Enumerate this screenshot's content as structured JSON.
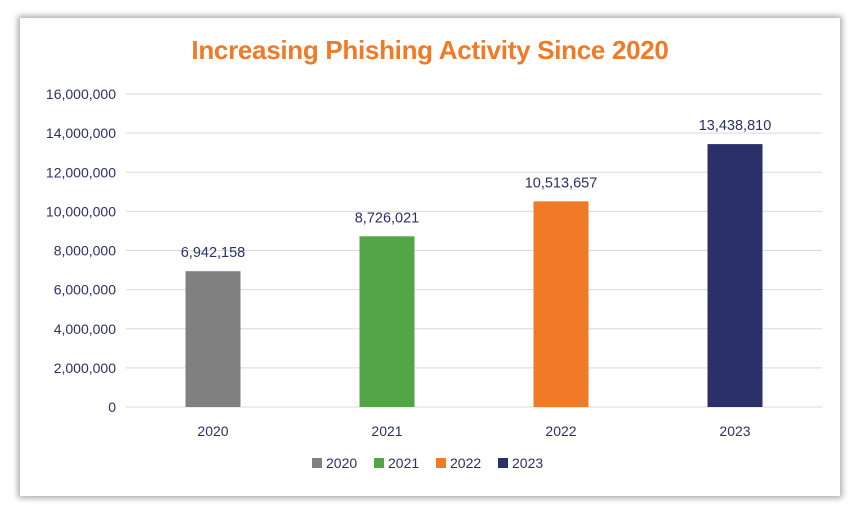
{
  "chart_data": {
    "type": "bar",
    "title": "Increasing Phishing Activity Since 2020",
    "categories": [
      "2020",
      "2021",
      "2022",
      "2023"
    ],
    "values": [
      6942158,
      8726021,
      10513657,
      13438810
    ],
    "data_labels": [
      "6,942,158",
      "8,726,021",
      "10,513,657",
      "13,438,810"
    ],
    "bar_colors": [
      "#808080",
      "#52a646",
      "#f07a26",
      "#2b3068"
    ],
    "ylim": [
      0,
      16000000
    ],
    "yticks": [
      0,
      2000000,
      4000000,
      6000000,
      8000000,
      10000000,
      12000000,
      14000000,
      16000000
    ],
    "ytick_labels": [
      "0",
      "2,000,000",
      "4,000,000",
      "6,000,000",
      "8,000,000",
      "10,000,000",
      "12,000,000",
      "14,000,000",
      "16,000,000"
    ],
    "grid": true,
    "legend": {
      "placement": "bottom",
      "entries": [
        "2020",
        "2021",
        "2022",
        "2023"
      ]
    },
    "title_color": "#f07a26",
    "text_color": "#2b3068",
    "gridline_color": "#d9d9d9"
  }
}
